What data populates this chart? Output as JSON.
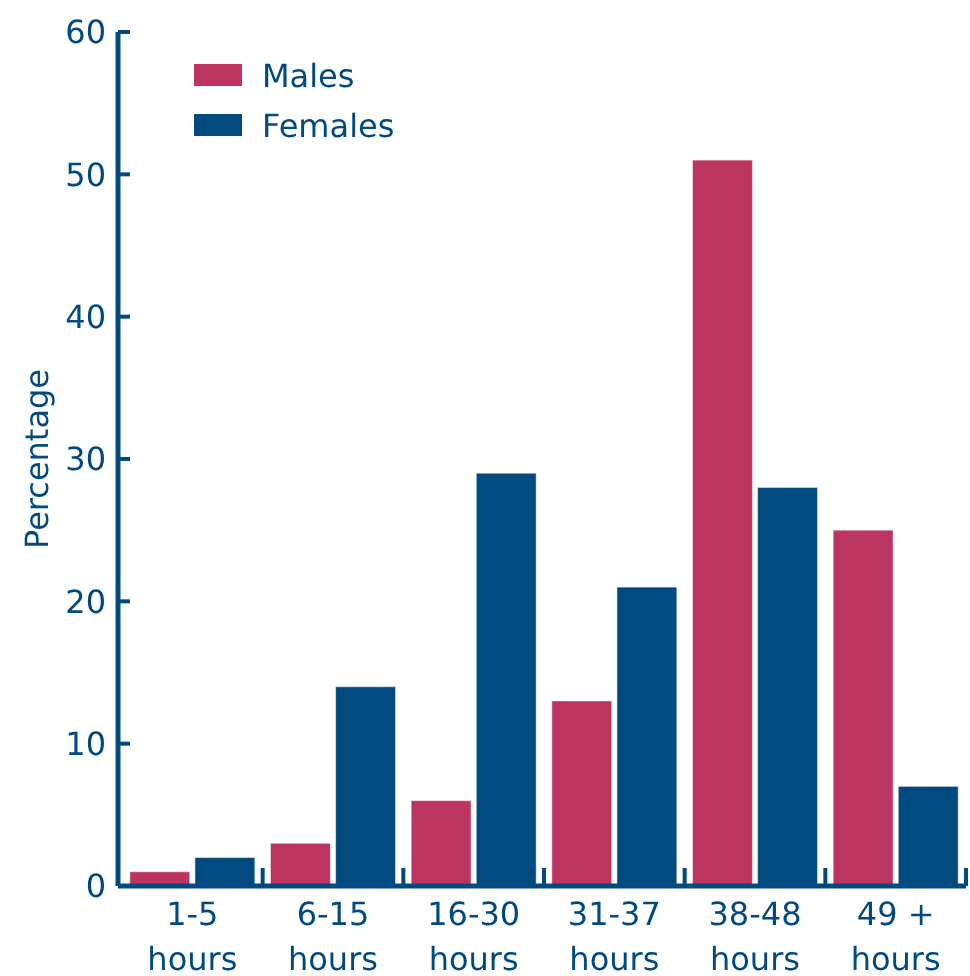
{
  "chart_data": {
    "type": "bar",
    "ylabel": "Percentage",
    "categories": [
      "1-5 hours",
      "6-15 hours",
      "16-30 hours",
      "31-37 hours",
      "38-48 hours",
      "49 + hours"
    ],
    "series": [
      {
        "name": "Males",
        "color": "#bb3560",
        "values": [
          1,
          3,
          6,
          13,
          51,
          25
        ]
      },
      {
        "name": "Females",
        "color": "#004a80",
        "values": [
          2,
          14,
          29,
          21,
          28,
          7
        ]
      }
    ],
    "ylim": [
      0,
      60
    ],
    "yticks": [
      0,
      10,
      20,
      30,
      40,
      50,
      60
    ],
    "grid": false,
    "legend": "top left"
  }
}
